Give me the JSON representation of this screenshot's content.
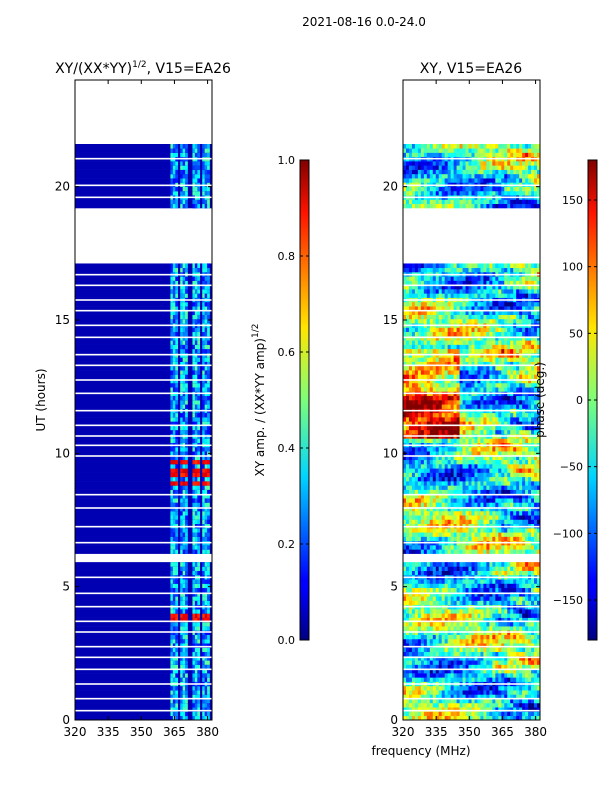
{
  "figure_title": "2021-08-16 0.0-24.0",
  "shared_xlabel": "frequency (MHz)",
  "chart_data": [
    {
      "type": "heatmap",
      "title_main": "XY/(XX*YY)",
      "title_sup": "1/2",
      "title_tail": ", V15=EA26",
      "xlabel": "",
      "ylabel": "UT (hours)",
      "xlim": [
        320,
        382
      ],
      "ylim": [
        0,
        24
      ],
      "xticks": [
        320,
        335,
        350,
        365,
        380
      ],
      "yticks": [
        0,
        5,
        10,
        15,
        20
      ],
      "quantity": "amplitude",
      "colorbar": {
        "label_main": "XY amp. / (XX*YY amp)",
        "label_sup": "1/2",
        "range": [
          0.0,
          1.0
        ],
        "ticks": [
          "0.0",
          "0.2",
          "0.4",
          "0.6",
          "0.8",
          "1.0"
        ],
        "tick_values": [
          0.0,
          0.2,
          0.4,
          0.6,
          0.8,
          1.0
        ]
      },
      "data_gaps_hours": [
        [
          17.1,
          19.2
        ],
        [
          21.6,
          24.0
        ],
        [
          5.95,
          6.2
        ],
        [
          8.75,
          8.85
        ]
      ],
      "active_channels_mhz": [
        [
          363.5,
          366.5
        ],
        [
          368,
          371
        ],
        [
          373,
          376
        ],
        [
          378,
          381
        ]
      ],
      "background_level": 0.05,
      "band_level": 0.3,
      "peak_level": 0.82,
      "peak_hours": [
        8.9,
        9.3,
        9.7,
        3.85
      ]
    },
    {
      "type": "heatmap",
      "title_main": "XY, V15=EA26",
      "xlabel": "",
      "ylabel": "",
      "xlim": [
        320,
        382
      ],
      "ylim": [
        0,
        24
      ],
      "xticks": [
        320,
        335,
        350,
        365,
        380
      ],
      "yticks": [
        0,
        5,
        10,
        15,
        20
      ],
      "quantity": "phase",
      "colorbar": {
        "label_main": "phase (deg.)",
        "range": [
          -180,
          180
        ],
        "ticks": [
          "150",
          "100",
          "50",
          "0",
          "−50",
          "−100",
          "−150"
        ],
        "tick_values": [
          150,
          100,
          50,
          0,
          -50,
          -100,
          -150
        ]
      },
      "data_gaps_hours": [
        [
          17.1,
          19.2
        ],
        [
          21.6,
          24.0
        ],
        [
          5.95,
          6.2
        ],
        [
          8.75,
          8.85
        ]
      ]
    }
  ]
}
